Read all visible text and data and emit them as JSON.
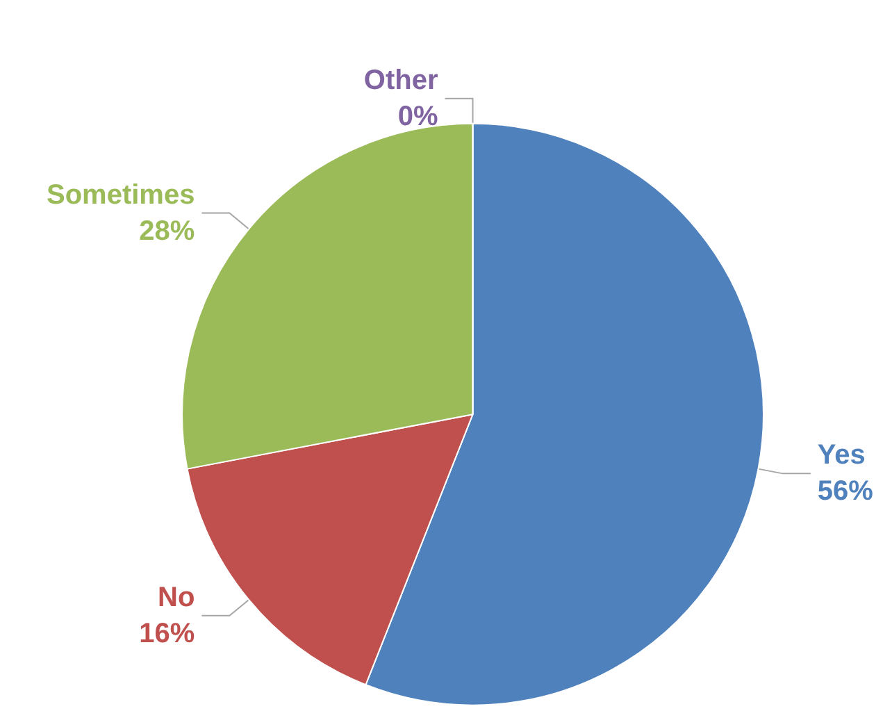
{
  "chart_data": {
    "type": "pie",
    "categories": [
      "Yes",
      "No",
      "Sometimes",
      "Other"
    ],
    "values": [
      56,
      16,
      28,
      0
    ],
    "value_labels": [
      "56%",
      "16%",
      "28%",
      "0%"
    ],
    "colors": [
      "#4f81bd",
      "#c0504d",
      "#9bbb59",
      "#8064a2"
    ],
    "legend": false
  }
}
